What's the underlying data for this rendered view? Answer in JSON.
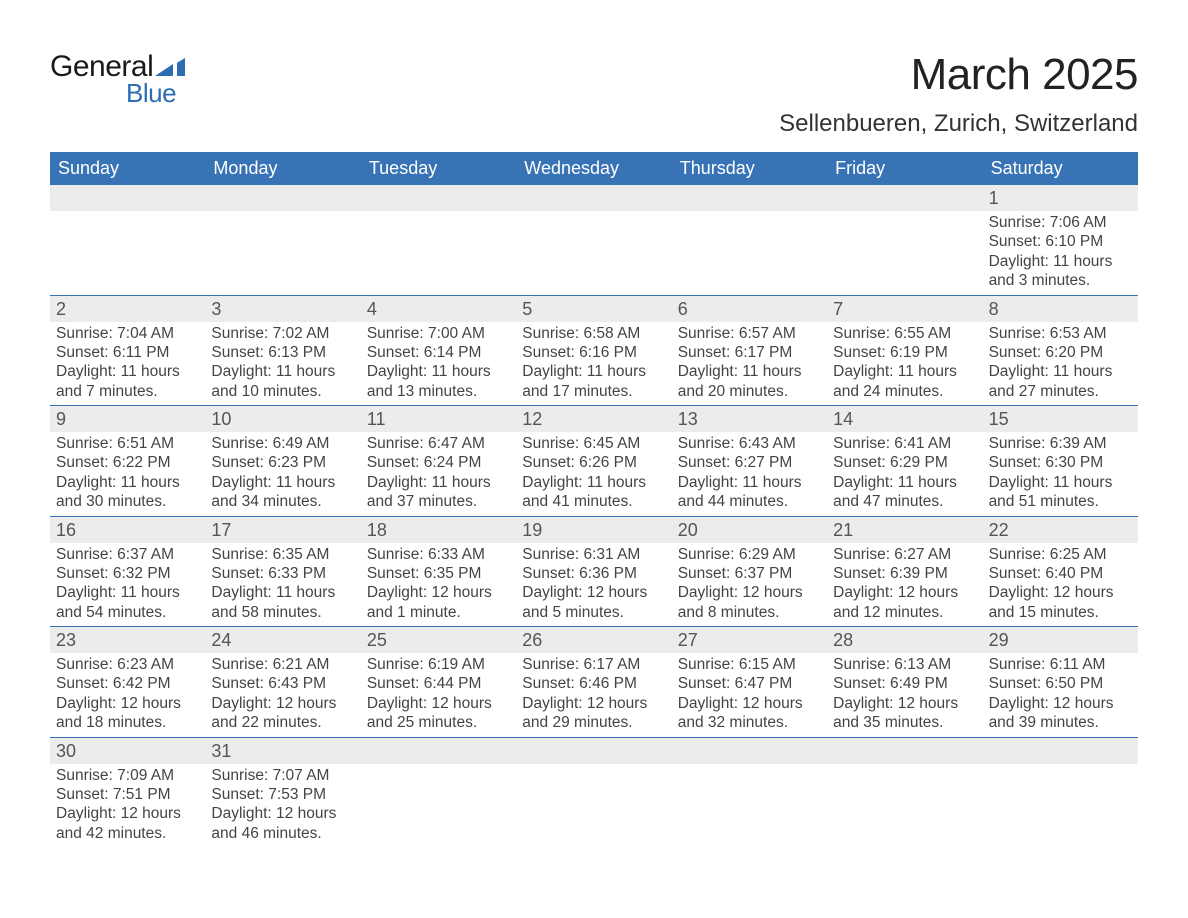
{
  "logo": {
    "word1": "General",
    "word2": "Blue"
  },
  "title": "March 2025",
  "location": "Sellenbueren, Zurich, Switzerland",
  "weekdays": [
    "Sunday",
    "Monday",
    "Tuesday",
    "Wednesday",
    "Thursday",
    "Friday",
    "Saturday"
  ],
  "style": {
    "header_bg": "#3874b5",
    "header_fg": "#ffffff",
    "daynum_bg": "#ececec",
    "row_divider": "#3874b5",
    "text_color": "#444444",
    "title_fontsize": 44,
    "location_fontsize": 24,
    "weekday_fontsize": 18,
    "daynum_fontsize": 18,
    "detail_fontsize": 15.5,
    "logo_color": "#2f6db3"
  },
  "weeks": [
    [
      null,
      null,
      null,
      null,
      null,
      null,
      {
        "n": "1",
        "sunrise": "Sunrise: 7:06 AM",
        "sunset": "Sunset: 6:10 PM",
        "daylight": "Daylight: 11 hours and 3 minutes."
      }
    ],
    [
      {
        "n": "2",
        "sunrise": "Sunrise: 7:04 AM",
        "sunset": "Sunset: 6:11 PM",
        "daylight": "Daylight: 11 hours and 7 minutes."
      },
      {
        "n": "3",
        "sunrise": "Sunrise: 7:02 AM",
        "sunset": "Sunset: 6:13 PM",
        "daylight": "Daylight: 11 hours and 10 minutes."
      },
      {
        "n": "4",
        "sunrise": "Sunrise: 7:00 AM",
        "sunset": "Sunset: 6:14 PM",
        "daylight": "Daylight: 11 hours and 13 minutes."
      },
      {
        "n": "5",
        "sunrise": "Sunrise: 6:58 AM",
        "sunset": "Sunset: 6:16 PM",
        "daylight": "Daylight: 11 hours and 17 minutes."
      },
      {
        "n": "6",
        "sunrise": "Sunrise: 6:57 AM",
        "sunset": "Sunset: 6:17 PM",
        "daylight": "Daylight: 11 hours and 20 minutes."
      },
      {
        "n": "7",
        "sunrise": "Sunrise: 6:55 AM",
        "sunset": "Sunset: 6:19 PM",
        "daylight": "Daylight: 11 hours and 24 minutes."
      },
      {
        "n": "8",
        "sunrise": "Sunrise: 6:53 AM",
        "sunset": "Sunset: 6:20 PM",
        "daylight": "Daylight: 11 hours and 27 minutes."
      }
    ],
    [
      {
        "n": "9",
        "sunrise": "Sunrise: 6:51 AM",
        "sunset": "Sunset: 6:22 PM",
        "daylight": "Daylight: 11 hours and 30 minutes."
      },
      {
        "n": "10",
        "sunrise": "Sunrise: 6:49 AM",
        "sunset": "Sunset: 6:23 PM",
        "daylight": "Daylight: 11 hours and 34 minutes."
      },
      {
        "n": "11",
        "sunrise": "Sunrise: 6:47 AM",
        "sunset": "Sunset: 6:24 PM",
        "daylight": "Daylight: 11 hours and 37 minutes."
      },
      {
        "n": "12",
        "sunrise": "Sunrise: 6:45 AM",
        "sunset": "Sunset: 6:26 PM",
        "daylight": "Daylight: 11 hours and 41 minutes."
      },
      {
        "n": "13",
        "sunrise": "Sunrise: 6:43 AM",
        "sunset": "Sunset: 6:27 PM",
        "daylight": "Daylight: 11 hours and 44 minutes."
      },
      {
        "n": "14",
        "sunrise": "Sunrise: 6:41 AM",
        "sunset": "Sunset: 6:29 PM",
        "daylight": "Daylight: 11 hours and 47 minutes."
      },
      {
        "n": "15",
        "sunrise": "Sunrise: 6:39 AM",
        "sunset": "Sunset: 6:30 PM",
        "daylight": "Daylight: 11 hours and 51 minutes."
      }
    ],
    [
      {
        "n": "16",
        "sunrise": "Sunrise: 6:37 AM",
        "sunset": "Sunset: 6:32 PM",
        "daylight": "Daylight: 11 hours and 54 minutes."
      },
      {
        "n": "17",
        "sunrise": "Sunrise: 6:35 AM",
        "sunset": "Sunset: 6:33 PM",
        "daylight": "Daylight: 11 hours and 58 minutes."
      },
      {
        "n": "18",
        "sunrise": "Sunrise: 6:33 AM",
        "sunset": "Sunset: 6:35 PM",
        "daylight": "Daylight: 12 hours and 1 minute."
      },
      {
        "n": "19",
        "sunrise": "Sunrise: 6:31 AM",
        "sunset": "Sunset: 6:36 PM",
        "daylight": "Daylight: 12 hours and 5 minutes."
      },
      {
        "n": "20",
        "sunrise": "Sunrise: 6:29 AM",
        "sunset": "Sunset: 6:37 PM",
        "daylight": "Daylight: 12 hours and 8 minutes."
      },
      {
        "n": "21",
        "sunrise": "Sunrise: 6:27 AM",
        "sunset": "Sunset: 6:39 PM",
        "daylight": "Daylight: 12 hours and 12 minutes."
      },
      {
        "n": "22",
        "sunrise": "Sunrise: 6:25 AM",
        "sunset": "Sunset: 6:40 PM",
        "daylight": "Daylight: 12 hours and 15 minutes."
      }
    ],
    [
      {
        "n": "23",
        "sunrise": "Sunrise: 6:23 AM",
        "sunset": "Sunset: 6:42 PM",
        "daylight": "Daylight: 12 hours and 18 minutes."
      },
      {
        "n": "24",
        "sunrise": "Sunrise: 6:21 AM",
        "sunset": "Sunset: 6:43 PM",
        "daylight": "Daylight: 12 hours and 22 minutes."
      },
      {
        "n": "25",
        "sunrise": "Sunrise: 6:19 AM",
        "sunset": "Sunset: 6:44 PM",
        "daylight": "Daylight: 12 hours and 25 minutes."
      },
      {
        "n": "26",
        "sunrise": "Sunrise: 6:17 AM",
        "sunset": "Sunset: 6:46 PM",
        "daylight": "Daylight: 12 hours and 29 minutes."
      },
      {
        "n": "27",
        "sunrise": "Sunrise: 6:15 AM",
        "sunset": "Sunset: 6:47 PM",
        "daylight": "Daylight: 12 hours and 32 minutes."
      },
      {
        "n": "28",
        "sunrise": "Sunrise: 6:13 AM",
        "sunset": "Sunset: 6:49 PM",
        "daylight": "Daylight: 12 hours and 35 minutes."
      },
      {
        "n": "29",
        "sunrise": "Sunrise: 6:11 AM",
        "sunset": "Sunset: 6:50 PM",
        "daylight": "Daylight: 12 hours and 39 minutes."
      }
    ],
    [
      {
        "n": "30",
        "sunrise": "Sunrise: 7:09 AM",
        "sunset": "Sunset: 7:51 PM",
        "daylight": "Daylight: 12 hours and 42 minutes."
      },
      {
        "n": "31",
        "sunrise": "Sunrise: 7:07 AM",
        "sunset": "Sunset: 7:53 PM",
        "daylight": "Daylight: 12 hours and 46 minutes."
      },
      null,
      null,
      null,
      null,
      null
    ]
  ]
}
